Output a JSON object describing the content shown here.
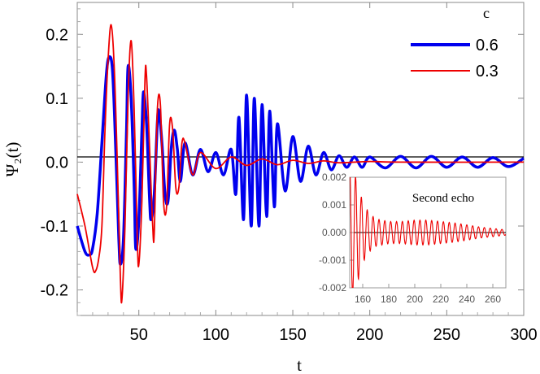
{
  "chart_data": [
    {
      "type": "line",
      "xlabel": "t",
      "ylabel": "Ψ₂(t)",
      "xlim": [
        10,
        300
      ],
      "ylim": [
        -0.24,
        0.25
      ],
      "xticks": [
        "50",
        "100",
        "150",
        "200",
        "250",
        "300"
      ],
      "yticks": [
        "0.2",
        "0.1",
        "0.0",
        "-0.1",
        "-0.2"
      ],
      "legend": {
        "title": "c",
        "placement": "top-right"
      },
      "series": [
        {
          "name": "0.6",
          "color": "#0000ee",
          "points": [
            [
              10,
              -0.1
            ],
            [
              15,
              -0.14
            ],
            [
              18,
              -0.145
            ],
            [
              20,
              -0.135
            ],
            [
              23,
              -0.08
            ],
            [
              26,
              0.03
            ],
            [
              29,
              0.14
            ],
            [
              31,
              0.165
            ],
            [
              33,
              0.14
            ],
            [
              35,
              0.02
            ],
            [
              37,
              -0.12
            ],
            [
              38,
              -0.16
            ],
            [
              40,
              -0.12
            ],
            [
              42,
              0.05
            ],
            [
              43,
              0.15
            ],
            [
              45,
              0.1
            ],
            [
              47,
              -0.04
            ],
            [
              48,
              -0.135
            ],
            [
              50,
              -0.09
            ],
            [
              52,
              0.05
            ],
            [
              53,
              0.11
            ],
            [
              55,
              0.06
            ],
            [
              57,
              -0.06
            ],
            [
              58,
              -0.09
            ],
            [
              60,
              -0.05
            ],
            [
              62,
              0.06
            ],
            [
              63,
              0.08
            ],
            [
              65,
              0.03
            ],
            [
              67,
              -0.05
            ],
            [
              69,
              -0.06
            ],
            [
              71,
              0.02
            ],
            [
              73,
              0.05
            ],
            [
              75,
              0.02
            ],
            [
              77,
              -0.03
            ],
            [
              80,
              0.03
            ],
            [
              85,
              -0.02
            ],
            [
              90,
              0.02
            ],
            [
              95,
              -0.015
            ],
            [
              100,
              0.015
            ],
            [
              105,
              -0.02
            ],
            [
              110,
              0.02
            ],
            [
              113,
              -0.05
            ],
            [
              115,
              0.07
            ],
            [
              118,
              -0.09
            ],
            [
              120,
              0.105
            ],
            [
              123,
              -0.1
            ],
            [
              125,
              0.1
            ],
            [
              128,
              -0.1
            ],
            [
              130,
              0.09
            ],
            [
              133,
              -0.085
            ],
            [
              135,
              0.08
            ],
            [
              138,
              -0.07
            ],
            [
              140,
              0.06
            ],
            [
              145,
              -0.045
            ],
            [
              150,
              0.04
            ],
            [
              155,
              -0.03
            ],
            [
              160,
              0.025
            ],
            [
              165,
              -0.02
            ],
            [
              170,
              0.015
            ],
            [
              175,
              -0.012
            ],
            [
              180,
              0.01
            ],
            [
              185,
              -0.008
            ],
            [
              190,
              0.008
            ],
            [
              195,
              -0.008
            ],
            [
              200,
              0.008
            ],
            [
              210,
              -0.009
            ],
            [
              220,
              0.009
            ],
            [
              230,
              -0.009
            ],
            [
              240,
              0.009
            ],
            [
              250,
              -0.008
            ],
            [
              260,
              0.008
            ],
            [
              270,
              -0.008
            ],
            [
              280,
              0.007
            ],
            [
              290,
              -0.007
            ],
            [
              300,
              0.006
            ]
          ]
        },
        {
          "name": "0.3",
          "color": "#ee0000",
          "points": [
            [
              10,
              -0.05
            ],
            [
              15,
              -0.1
            ],
            [
              20,
              -0.165
            ],
            [
              22,
              -0.17
            ],
            [
              24,
              -0.15
            ],
            [
              26,
              -0.1
            ],
            [
              28,
              0.05
            ],
            [
              30,
              0.16
            ],
            [
              32,
              0.215
            ],
            [
              34,
              0.15
            ],
            [
              36,
              0.0
            ],
            [
              38,
              -0.18
            ],
            [
              39,
              -0.215
            ],
            [
              41,
              -0.1
            ],
            [
              43,
              0.1
            ],
            [
              45,
              0.19
            ],
            [
              47,
              0.08
            ],
            [
              49,
              -0.12
            ],
            [
              50,
              -0.16
            ],
            [
              52,
              -0.06
            ],
            [
              54,
              0.13
            ],
            [
              55,
              0.135
            ],
            [
              57,
              0.02
            ],
            [
              59,
              -0.1
            ],
            [
              60,
              -0.11
            ],
            [
              62,
              0.08
            ],
            [
              64,
              0.09
            ],
            [
              66,
              -0.06
            ],
            [
              68,
              -0.07
            ],
            [
              70,
              0.06
            ],
            [
              72,
              0.05
            ],
            [
              74,
              -0.04
            ],
            [
              76,
              -0.04
            ],
            [
              78,
              0.03
            ],
            [
              80,
              0.03
            ],
            [
              85,
              -0.02
            ],
            [
              90,
              0.015
            ],
            [
              100,
              -0.01
            ],
            [
              110,
              0.008
            ],
            [
              120,
              -0.005
            ],
            [
              130,
              0.005
            ],
            [
              140,
              -0.004
            ],
            [
              150,
              0.003
            ],
            [
              160,
              -0.002
            ],
            [
              170,
              0.002
            ],
            [
              180,
              -0.001
            ],
            [
              200,
              0.001
            ],
            [
              220,
              0.0
            ],
            [
              300,
              0.0
            ]
          ]
        }
      ]
    },
    {
      "type": "line",
      "title": "Second echo",
      "xlim": [
        150,
        270
      ],
      "ylim": [
        -0.002,
        0.002
      ],
      "xticks": [
        "160",
        "180",
        "200",
        "220",
        "240",
        "260"
      ],
      "yticks": [
        "0.002",
        "0.001",
        "0.000",
        "-0.001",
        "-0.002"
      ],
      "series": [
        {
          "color": "#ee0000",
          "envelope": [
            [
              150,
              0.0025
            ],
            [
              155,
              0.002
            ],
            [
              160,
              0.0011
            ],
            [
              165,
              0.0007
            ],
            [
              170,
              0.0005
            ],
            [
              180,
              0.0004
            ],
            [
              190,
              0.0004
            ],
            [
              200,
              0.00045
            ],
            [
              210,
              0.00045
            ],
            [
              220,
              0.0004
            ],
            [
              230,
              0.00035
            ],
            [
              240,
              0.00028
            ],
            [
              250,
              0.0002
            ],
            [
              260,
              0.00015
            ],
            [
              270,
              0.0001
            ]
          ],
          "period": 4.5
        }
      ]
    }
  ]
}
